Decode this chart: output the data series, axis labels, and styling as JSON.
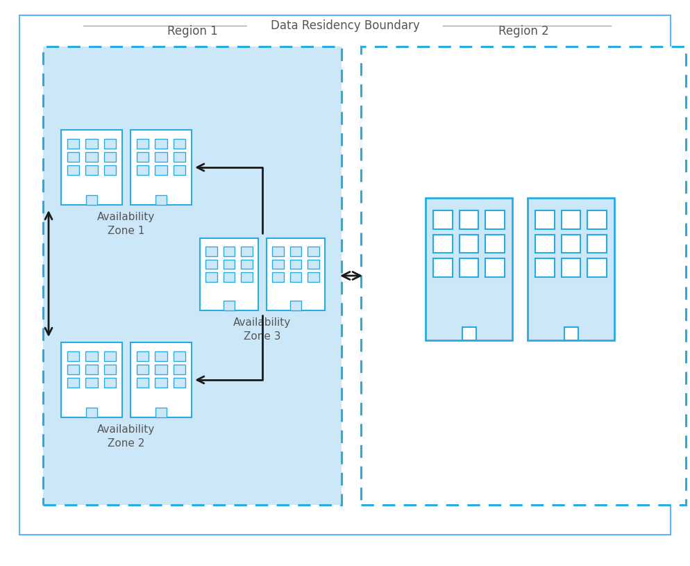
{
  "title": "Data Residency Boundary",
  "region1_label": "Region 1",
  "region2_label": "Region 2",
  "az1_label": "Availability\nZone 1",
  "az2_label": "Availability\nZone 2",
  "az3_label": "Availability\nZone 3",
  "bg_color": "#ffffff",
  "outer_border_color": "#5bb8f5",
  "region1_fill": "#cce8f8",
  "region1_border": "#29abe2",
  "region2_fill": "#ffffff",
  "region2_border": "#29abe2",
  "building_fill_small": "#ffffff",
  "building_border_small": "#29abe2",
  "building_fill_large": "#cce8f8",
  "building_border_large": "#29abe2",
  "window_fill_small": "#cce8f8",
  "window_fill_large": "#ffffff",
  "window_border": "#29abe2",
  "arrow_color": "#1a1a1a",
  "text_color": "#555555",
  "title_color": "#555555",
  "label_fontsize": 11,
  "title_fontsize": 12
}
